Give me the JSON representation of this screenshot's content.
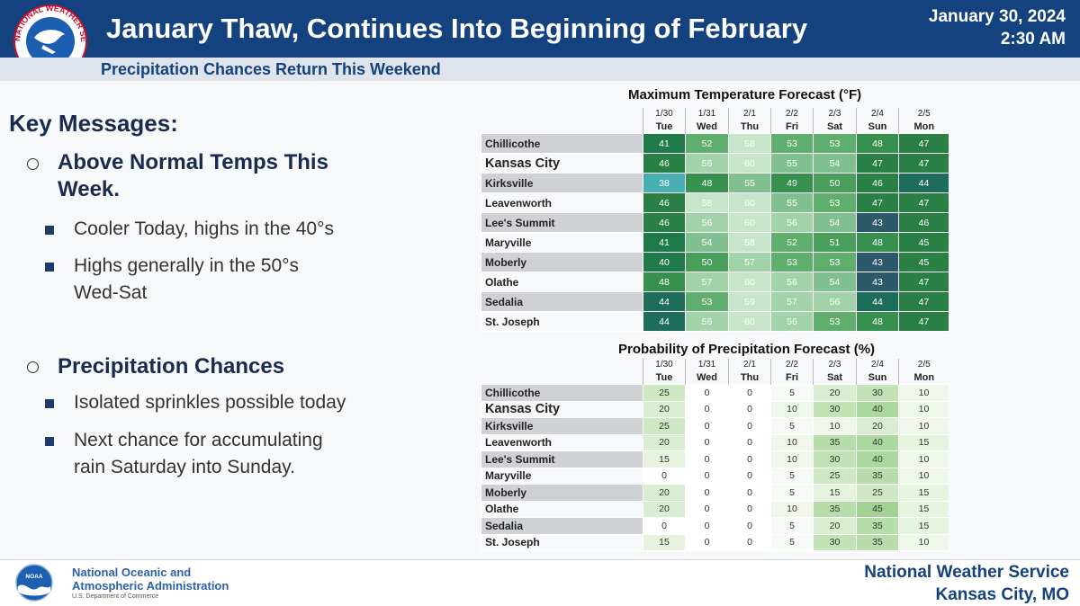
{
  "header": {
    "title": "January Thaw, Continues Into Beginning of February",
    "date": "January 30, 2024",
    "time": "2:30 AM",
    "subtitle": "Precipitation Chances Return This Weekend",
    "logo_ring_text": "NATIONAL WEATHER SERVICE"
  },
  "key_messages": {
    "title": "Key Messages:",
    "items": [
      {
        "heading_line1": "Above Normal Temps This",
        "heading_line2": "Week.",
        "subs": [
          {
            "line1": "Cooler Today, highs in the 40°s",
            "line2": ""
          },
          {
            "line1": "Highs generally in the 50°s",
            "line2": "Wed-Sat"
          }
        ]
      },
      {
        "heading_line1": "Precipitation Chances",
        "heading_line2": "",
        "subs": [
          {
            "line1": "Isolated sprinkles possible today",
            "line2": ""
          },
          {
            "line1": "Next chance for accumulating",
            "line2": "rain Saturday into Sunday."
          }
        ]
      }
    ]
  },
  "dates": [
    "1/30",
    "1/31",
    "2/1",
    "2/2",
    "2/3",
    "2/4",
    "2/5"
  ],
  "days": [
    "Tue",
    "Wed",
    "Thu",
    "Fri",
    "Sat",
    "Sun",
    "Mon"
  ],
  "cities": [
    "Chillicothe",
    "Kansas City",
    "Kirksville",
    "Leavenworth",
    "Lee's Summit",
    "Maryville",
    "Moberly",
    "Olathe",
    "Sedalia",
    "St. Joseph"
  ],
  "temperature_table": {
    "title": "Maximum Temperature Forecast (°F)",
    "values": [
      [
        41,
        52,
        58,
        53,
        53,
        48,
        47
      ],
      [
        46,
        56,
        60,
        55,
        54,
        47,
        47
      ],
      [
        38,
        48,
        55,
        49,
        50,
        46,
        44
      ],
      [
        46,
        58,
        60,
        55,
        53,
        47,
        47
      ],
      [
        46,
        56,
        60,
        56,
        54,
        43,
        46
      ],
      [
        41,
        54,
        58,
        52,
        51,
        48,
        45
      ],
      [
        40,
        50,
        57,
        53,
        53,
        43,
        45
      ],
      [
        48,
        57,
        60,
        56,
        54,
        43,
        47
      ],
      [
        44,
        53,
        59,
        57,
        56,
        44,
        47
      ],
      [
        44,
        56,
        60,
        56,
        53,
        48,
        47
      ]
    ]
  },
  "precip_table": {
    "title": "Probability of Precipitation Forecast (%)",
    "values": [
      [
        25,
        0,
        0,
        5,
        20,
        30,
        10
      ],
      [
        20,
        0,
        0,
        10,
        30,
        40,
        10
      ],
      [
        25,
        0,
        0,
        5,
        10,
        20,
        10
      ],
      [
        20,
        0,
        0,
        10,
        35,
        40,
        15
      ],
      [
        15,
        0,
        0,
        10,
        30,
        40,
        10
      ],
      [
        0,
        0,
        0,
        5,
        25,
        35,
        10
      ],
      [
        20,
        0,
        0,
        5,
        15,
        25,
        15
      ],
      [
        20,
        0,
        0,
        10,
        35,
        45,
        15
      ],
      [
        0,
        0,
        0,
        5,
        20,
        35,
        15
      ],
      [
        15,
        0,
        0,
        5,
        30,
        35,
        10
      ]
    ]
  },
  "footer": {
    "noaa_logo_text": "NOAA",
    "noaa_line1": "National Oceanic and",
    "noaa_line2": "Atmospheric Administration",
    "noaa_dept": "U.S. Department of Commerce",
    "office_line1": "National Weather Service",
    "office_line2": "Kansas City, MO"
  },
  "colors": {
    "header_blue": "#13427f",
    "temp_scale": {
      "38": "#49aeb2",
      "43": "#2d5a6b",
      "44": "#1e6d5a",
      "50": "#2f8e4a",
      "55": "#8bc497",
      "60": "#c7e5c8"
    },
    "pop_scale": {
      "0": "#ffffff",
      "5": "#f7fbf5",
      "15": "#e6f3de",
      "25": "#cde8c2",
      "35": "#b6ddaa",
      "45": "#9fd293"
    }
  }
}
